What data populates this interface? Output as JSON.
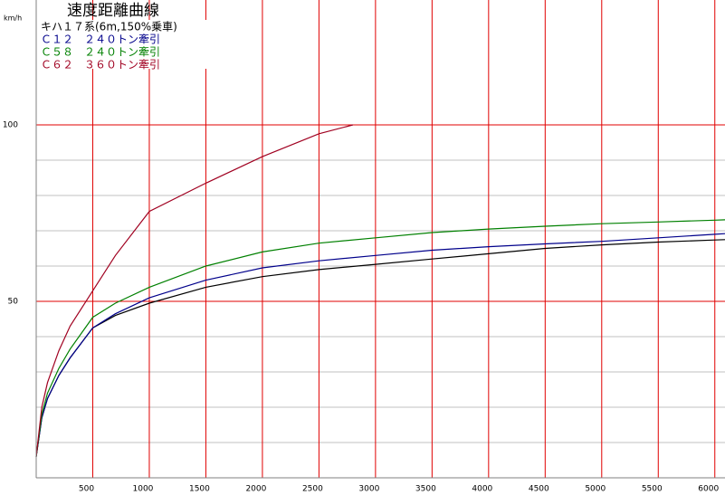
{
  "chart_data": {
    "type": "line",
    "title": "速度距離曲線",
    "y_label": "km/h",
    "xlim": [
      0,
      6090
    ],
    "ylim": [
      0,
      135.4
    ],
    "xticks": [
      500,
      1000,
      1500,
      2000,
      2500,
      3000,
      3500,
      4000,
      4500,
      5000,
      5500,
      6000
    ],
    "yticks": [
      50,
      100
    ],
    "yminor": [
      10,
      20,
      30,
      40,
      60,
      70,
      80,
      90
    ],
    "grid_color": "#e00000",
    "minor_grid_color": "#c0c0c0",
    "series": [
      {
        "name": "キハ１７系(6m,150%乗車)",
        "color": "#000000",
        "x": [
          0,
          50,
          100,
          200,
          300,
          500,
          700,
          1000,
          1500,
          2000,
          2500,
          3000,
          3500,
          4000,
          4500,
          5000,
          5500,
          6000,
          6090
        ],
        "values": [
          6,
          17,
          22.5,
          29,
          34,
          42.5,
          46,
          49.5,
          54,
          57,
          59,
          60.5,
          62,
          63.5,
          65,
          66,
          66.8,
          67.4,
          67.5
        ]
      },
      {
        "name": "Ｃ１２　２４０トン牽引",
        "color": "#00008b",
        "x": [
          0,
          50,
          100,
          200,
          300,
          500,
          700,
          1000,
          1500,
          2000,
          2500,
          3000,
          3500,
          4000,
          4500,
          5000,
          5500,
          6000,
          6090
        ],
        "values": [
          6,
          17,
          22.5,
          29,
          34,
          42.5,
          46.5,
          51,
          56,
          59.5,
          61.5,
          63,
          64.5,
          65.5,
          66.3,
          67,
          68,
          69,
          69.2
        ]
      },
      {
        "name": "Ｃ５８　２４０トン牽引",
        "color": "#008000",
        "x": [
          0,
          50,
          100,
          200,
          300,
          500,
          700,
          1000,
          1500,
          2000,
          2500,
          3000,
          3500,
          4000,
          4500,
          5000,
          5500,
          6000,
          6090
        ],
        "values": [
          6,
          18,
          24,
          31,
          36.5,
          45.5,
          49.5,
          54,
          60,
          64,
          66.5,
          68,
          69.5,
          70.5,
          71.3,
          72,
          72.5,
          73,
          73.1
        ]
      },
      {
        "name": "Ｃ６２　３６０トン牽引",
        "color": "#a00020",
        "x": [
          0,
          50,
          100,
          200,
          300,
          500,
          700,
          1000,
          1500,
          2000,
          2500,
          2800
        ],
        "values": [
          6,
          20,
          27,
          36,
          43,
          53,
          63,
          75.5,
          83.5,
          91,
          97.5,
          100
        ]
      }
    ]
  }
}
